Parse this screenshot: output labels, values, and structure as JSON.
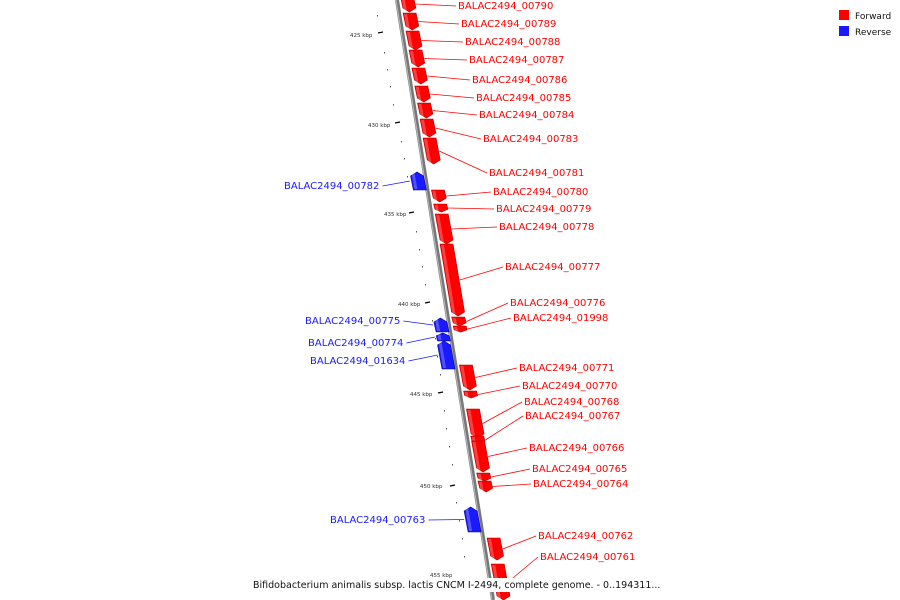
{
  "legend": {
    "forward_label": "Forward",
    "reverse_label": "Reverse",
    "forward_color": "#ff0000",
    "reverse_color": "#1a1aff"
  },
  "caption": "Bifidobacterium animalis subsp. lactis CNCM I-2494, complete genome. - 0..194311...",
  "ticks": [
    "425 kbp",
    "430 kbp",
    "435 kbp",
    "440 kbp",
    "445 kbp",
    "450 kbp",
    "455 kbp"
  ],
  "forward_genes": [
    "BALAC2494_00790",
    "BALAC2494_00789",
    "BALAC2494_00788",
    "BALAC2494_00787",
    "BALAC2494_00786",
    "BALAC2494_00785",
    "BALAC2494_00784",
    "BALAC2494_00783",
    "BALAC2494_00781",
    "BALAC2494_00780",
    "BALAC2494_00779",
    "BALAC2494_00778",
    "BALAC2494_00777",
    "BALAC2494_00776",
    "BALAC2494_01998",
    "BALAC2494_00771",
    "BALAC2494_00770",
    "BALAC2494_00768",
    "BALAC2494_00767",
    "BALAC2494_00766",
    "BALAC2494_00765",
    "BALAC2494_00764",
    "BALAC2494_00762",
    "BALAC2494_00761"
  ],
  "reverse_genes": [
    "BALAC2494_00782",
    "BALAC2494_00775",
    "BALAC2494_00774",
    "BALAC2494_01634",
    "BALAC2494_00763"
  ]
}
